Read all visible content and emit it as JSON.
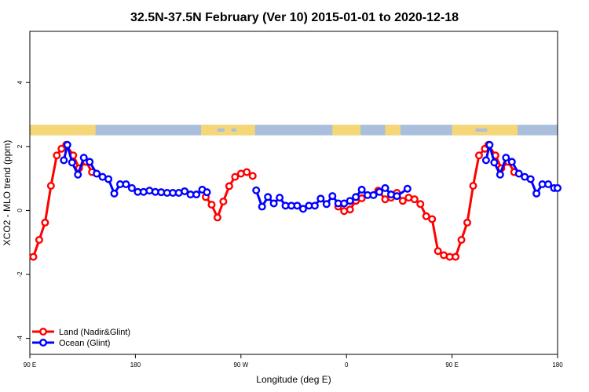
{
  "chart_data": {
    "type": "line",
    "title": "32.5N-37.5N February (Ver 10)   2015-01-01 to 2020-12-18",
    "xlabel": "Longitude (deg E)",
    "ylabel": "XCO2 - MLO trend (ppm)",
    "x_ticks": [
      {
        "value": 90,
        "label": "90 E"
      },
      {
        "value": 180,
        "label": "180"
      },
      {
        "value": 270,
        "label": "90 W"
      },
      {
        "value": 360,
        "label": "0"
      },
      {
        "value": 450,
        "label": "90 E"
      },
      {
        "value": 540,
        "label": "180"
      }
    ],
    "y_ticks": [
      -4,
      -2,
      0,
      2,
      4
    ],
    "xlim": [
      90,
      540
    ],
    "ylim": [
      -4.5,
      5.6
    ],
    "grid": false,
    "legend_position": "bottom-left",
    "map_strip": {
      "y_range": [
        2.35,
        2.68
      ],
      "ocean_color": "#a9bfdc",
      "land_color": "#f5d778"
    },
    "series": [
      {
        "name": "Land (Nadir&Glint)",
        "color": "#ff0000",
        "segments": [
          [
            [
              93,
              -1.45
            ],
            [
              98,
              -0.92
            ],
            [
              103,
              -0.38
            ],
            [
              108,
              0.77
            ],
            [
              113,
              1.72
            ],
            [
              117,
              1.93
            ],
            [
              121,
              2.05
            ],
            [
              127,
              1.72
            ],
            [
              132,
              1.32
            ],
            [
              138,
              1.52
            ],
            [
              143,
              1.2
            ]
          ],
          [
            [
              240,
              0.42
            ],
            [
              245,
              0.18
            ],
            [
              250,
              -0.22
            ],
            [
              255,
              0.28
            ],
            [
              260,
              0.76
            ],
            [
              265,
              1.05
            ],
            [
              270,
              1.15
            ],
            [
              275,
              1.2
            ],
            [
              280,
              1.08
            ]
          ],
          [
            [
              353,
              0.12
            ],
            [
              358,
              -0.02
            ],
            [
              363,
              0.03
            ],
            [
              368,
              0.3
            ],
            [
              373,
              0.38
            ],
            [
              387,
              0.62
            ],
            [
              393,
              0.35
            ],
            [
              398,
              0.4
            ],
            [
              403,
              0.55
            ],
            [
              408,
              0.3
            ],
            [
              413,
              0.4
            ],
            [
              418,
              0.35
            ],
            [
              423,
              0.2
            ],
            [
              428,
              -0.18
            ],
            [
              433,
              -0.27
            ],
            [
              438,
              -1.27
            ],
            [
              443,
              -1.4
            ],
            [
              448,
              -1.45
            ],
            [
              453,
              -1.45
            ],
            [
              458,
              -0.92
            ],
            [
              463,
              -0.38
            ],
            [
              468,
              0.77
            ],
            [
              473,
              1.72
            ],
            [
              478,
              1.93
            ],
            [
              481,
              2.05
            ],
            [
              487,
              1.72
            ],
            [
              492,
              1.32
            ],
            [
              498,
              1.52
            ],
            [
              503,
              1.2
            ]
          ]
        ]
      },
      {
        "name": "Ocean (Glint)",
        "color": "#0000ff",
        "segments": [
          [
            [
              119,
              1.57
            ],
            [
              122,
              2.05
            ],
            [
              126,
              1.5
            ],
            [
              131,
              1.12
            ],
            [
              136,
              1.65
            ],
            [
              141,
              1.52
            ],
            [
              147,
              1.15
            ],
            [
              152,
              1.05
            ],
            [
              157,
              0.98
            ],
            [
              162,
              0.53
            ],
            [
              167,
              0.82
            ],
            [
              172,
              0.82
            ],
            [
              177,
              0.7
            ],
            [
              182,
              0.58
            ],
            [
              187,
              0.58
            ],
            [
              192,
              0.62
            ],
            [
              197,
              0.58
            ],
            [
              202,
              0.57
            ],
            [
              207,
              0.55
            ],
            [
              212,
              0.55
            ],
            [
              217,
              0.55
            ],
            [
              222,
              0.6
            ],
            [
              227,
              0.5
            ],
            [
              232,
              0.5
            ],
            [
              237,
              0.65
            ],
            [
              241,
              0.57
            ]
          ],
          [
            [
              283,
              0.63
            ],
            [
              288,
              0.12
            ],
            [
              293,
              0.42
            ],
            [
              298,
              0.22
            ],
            [
              303,
              0.4
            ],
            [
              308,
              0.15
            ],
            [
              313,
              0.15
            ],
            [
              318,
              0.15
            ],
            [
              323,
              0.05
            ],
            [
              328,
              0.15
            ],
            [
              333,
              0.15
            ],
            [
              338,
              0.37
            ],
            [
              343,
              0.2
            ],
            [
              348,
              0.45
            ],
            [
              353,
              0.22
            ],
            [
              358,
              0.22
            ],
            [
              363,
              0.3
            ],
            [
              368,
              0.42
            ],
            [
              373,
              0.65
            ],
            [
              378,
              0.48
            ],
            [
              383,
              0.48
            ],
            [
              388,
              0.58
            ],
            [
              393,
              0.7
            ],
            [
              398,
              0.5
            ],
            [
              403,
              0.45
            ],
            [
              412,
              0.68
            ]
          ],
          [
            [
              479,
              1.57
            ],
            [
              482,
              2.05
            ],
            [
              486,
              1.5
            ],
            [
              491,
              1.12
            ],
            [
              496,
              1.65
            ],
            [
              501,
              1.52
            ],
            [
              507,
              1.15
            ],
            [
              512,
              1.05
            ],
            [
              517,
              0.98
            ],
            [
              522,
              0.53
            ],
            [
              527,
              0.82
            ],
            [
              532,
              0.82
            ],
            [
              537,
              0.7
            ],
            [
              540,
              0.7
            ]
          ]
        ]
      }
    ]
  }
}
